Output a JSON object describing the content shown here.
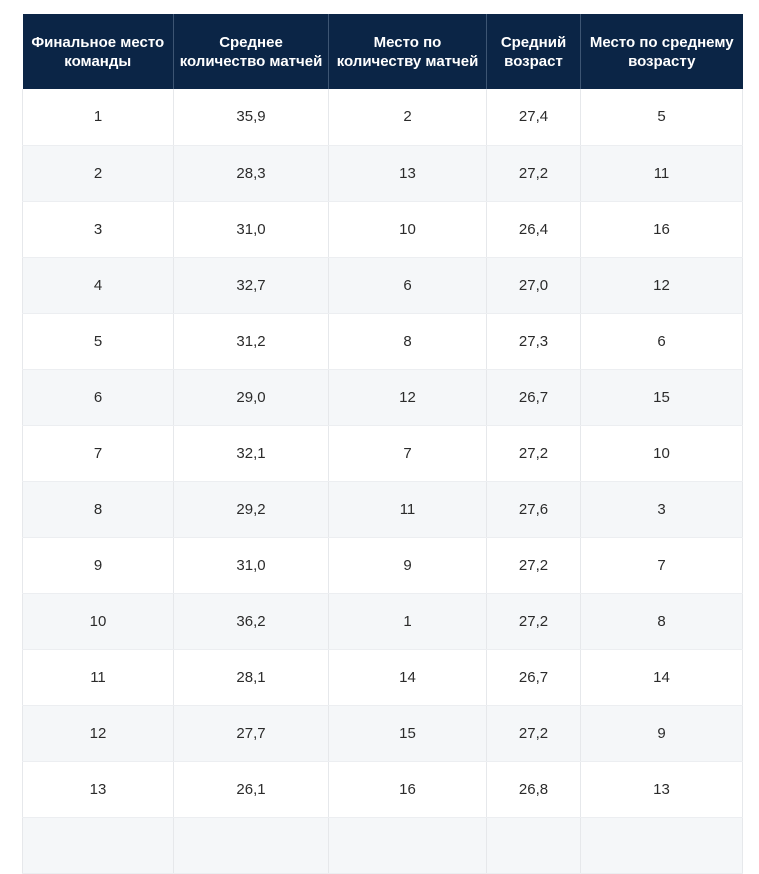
{
  "table": {
    "headers": [
      "Финальное место команды",
      "Среднее количество матчей",
      "Место по количеству матчей",
      "Средний возраст",
      "Место по среднему возрасту"
    ],
    "rows": [
      [
        "1",
        "35,9",
        "2",
        "27,4",
        "5"
      ],
      [
        "2",
        "28,3",
        "13",
        "27,2",
        "11"
      ],
      [
        "3",
        "31,0",
        "10",
        "26,4",
        "16"
      ],
      [
        "4",
        "32,7",
        "6",
        "27,0",
        "12"
      ],
      [
        "5",
        "31,2",
        "8",
        "27,3",
        "6"
      ],
      [
        "6",
        "29,0",
        "12",
        "26,7",
        "15"
      ],
      [
        "7",
        "32,1",
        "7",
        "27,2",
        "10"
      ],
      [
        "8",
        "29,2",
        "11",
        "27,6",
        "3"
      ],
      [
        "9",
        "31,0",
        "9",
        "27,2",
        "7"
      ],
      [
        "10",
        "36,2",
        "1",
        "27,2",
        "8"
      ],
      [
        "11",
        "28,1",
        "14",
        "26,7",
        "14"
      ],
      [
        "12",
        "27,7",
        "15",
        "27,2",
        "9"
      ],
      [
        "13",
        "26,1",
        "16",
        "26,8",
        "13"
      ],
      [
        "",
        "",
        "",
        "",
        ""
      ]
    ]
  },
  "colors": {
    "header_bg": "#0b2546",
    "header_text": "#ffffff",
    "row_alt_bg": "#f5f7f9"
  }
}
